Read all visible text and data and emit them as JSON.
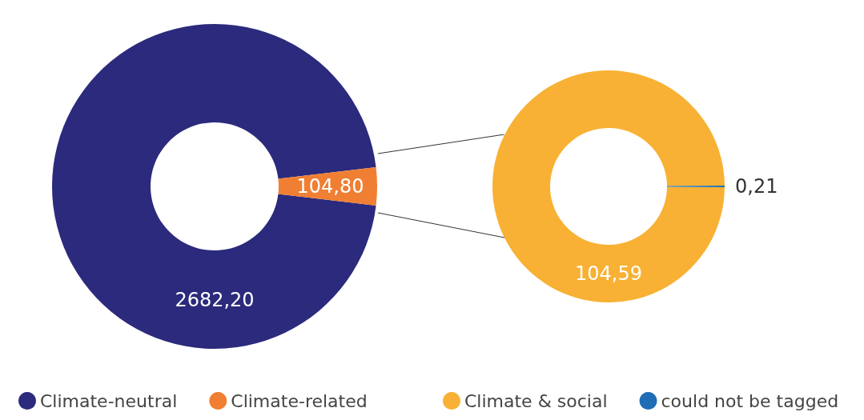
{
  "chart_data": [
    {
      "type": "donut",
      "categories": [
        "Climate-neutral",
        "Climate-related"
      ],
      "values": [
        2682.2,
        104.8
      ],
      "colors": [
        "#2b2a7c",
        "#f07f33"
      ],
      "value_labels": [
        "2682,20",
        "104,80"
      ],
      "legend": "bottom"
    },
    {
      "type": "donut",
      "categories": [
        "Climate & social",
        "could not be tagged"
      ],
      "values": [
        104.59,
        0.21
      ],
      "colors": [
        "#f8b134",
        "#1e6db5"
      ],
      "value_labels": [
        "104,59",
        "0,21"
      ],
      "legend": "bottom"
    }
  ]
}
